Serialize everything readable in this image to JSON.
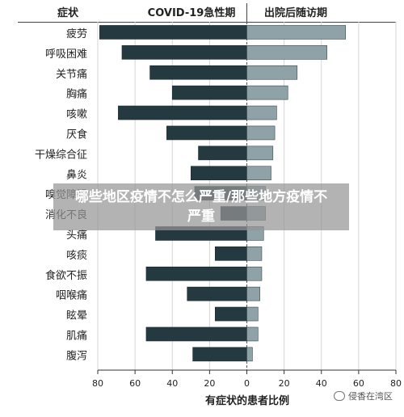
{
  "chart_data": {
    "type": "bar",
    "orientation": "horizontal-diverging",
    "category_header": "症状",
    "categories": [
      "疲劳",
      "呼吸困难",
      "关节痛",
      "胸痛",
      "咳嗽",
      "厌食",
      "干燥综合征",
      "鼻炎",
      "嗅觉障碍",
      "消化不良",
      "头痛",
      "咳痰",
      "食欲不振",
      "咽喉痛",
      "眩晕",
      "肌痛",
      "腹泻"
    ],
    "series": [
      {
        "name": "COVID-19急性期",
        "direction": "left",
        "color": "#253a40",
        "values": [
          79,
          67,
          52,
          40,
          69,
          43,
          26,
          30,
          28,
          14,
          49,
          17,
          54,
          32,
          17,
          54,
          29
        ]
      },
      {
        "name": "出院后随访期",
        "direction": "right",
        "color": "#8ea2a8",
        "values": [
          53,
          43,
          27,
          22,
          16,
          15,
          14,
          13,
          10,
          10,
          9,
          8,
          8,
          7,
          6,
          6,
          3
        ]
      }
    ],
    "xlabel": "有症状的患者比例",
    "xticks": [
      "80",
      "60",
      "40",
      "20",
      "0",
      "20",
      "40",
      "60",
      "80"
    ],
    "xlim": [
      -80,
      80
    ],
    "grid": true
  },
  "overlay_text": "哪些地区疫情不怎么严重/那些地方疫情不严重",
  "watermark": "侵香在湾区",
  "watermark_icon": "wechat-icon"
}
